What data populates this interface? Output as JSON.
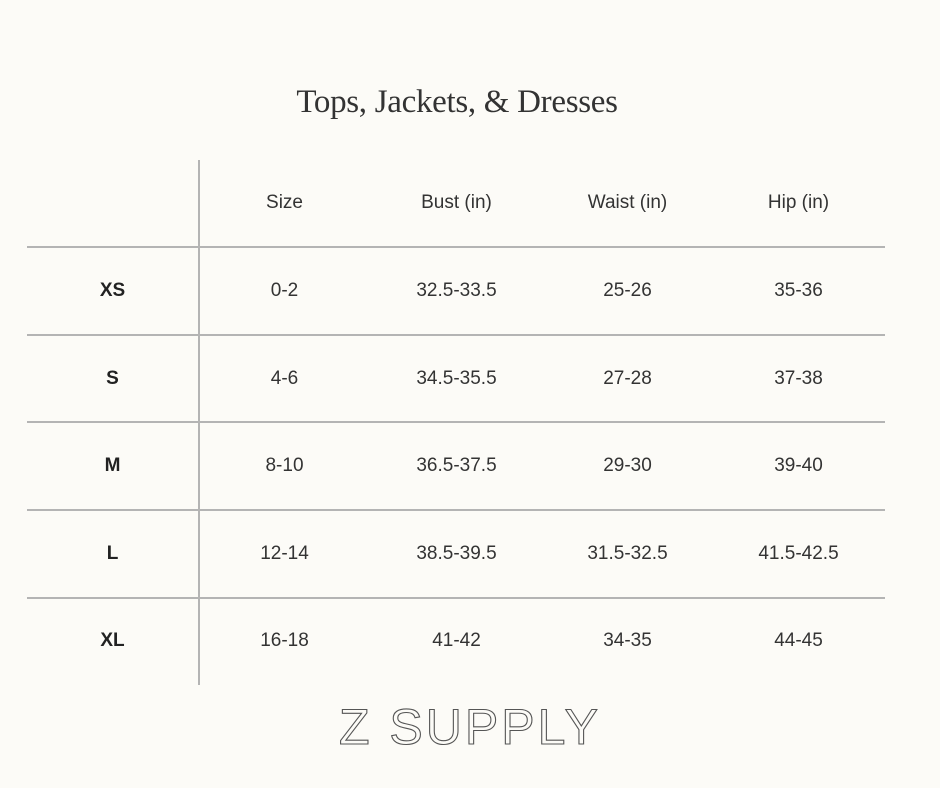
{
  "title": "Tops, Jackets, & Dresses",
  "table": {
    "columns": [
      "",
      "Size",
      "Bust (in)",
      "Waist (in)",
      "Hip (in)"
    ],
    "rows": [
      [
        "XS",
        "0-2",
        "32.5-33.5",
        "25-26",
        "35-36"
      ],
      [
        "S",
        "4-6",
        "34.5-35.5",
        "27-28",
        "37-38"
      ],
      [
        "M",
        "8-10",
        "36.5-37.5",
        "29-30",
        "39-40"
      ],
      [
        "L",
        "12-14",
        "38.5-39.5",
        "31.5-32.5",
        "41.5-42.5"
      ],
      [
        "XL",
        "16-18",
        "41-42",
        "34-35",
        "44-45"
      ]
    ]
  },
  "logo": "Z SUPPLY",
  "colors": {
    "background": "#fcfbf7",
    "grid": "#b4b4b4",
    "text": "#333333"
  }
}
